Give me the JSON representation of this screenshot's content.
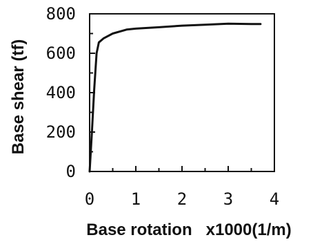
{
  "chart_data": {
    "type": "line",
    "title": "",
    "xlabel": "Base rotation   x1000(1/m)",
    "ylabel": "Base shear (tf)",
    "xlim": [
      0,
      4
    ],
    "ylim": [
      0,
      800
    ],
    "xticks": [
      "0",
      "1",
      "2",
      "3",
      "4"
    ],
    "yticks": [
      "0",
      "200",
      "400",
      "600",
      "800"
    ],
    "grid": false,
    "legend": "none",
    "series": [
      {
        "x": [
          0,
          0.05,
          0.1,
          0.15,
          0.2,
          0.3,
          0.5,
          0.8,
          1.0,
          1.5,
          2.0,
          2.5,
          3.0,
          3.5,
          3.7
        ],
        "y": [
          0,
          200,
          420,
          600,
          655,
          675,
          700,
          720,
          725,
          732,
          740,
          745,
          750,
          748,
          748
        ]
      }
    ]
  }
}
